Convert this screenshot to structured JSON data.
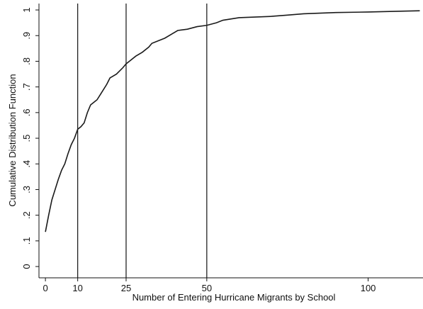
{
  "chart_data": {
    "type": "line",
    "xlabel": "Number of Entering Hurricane Migrants by School",
    "ylabel": "Cumulative Distribution Function",
    "x": [
      0,
      1,
      2,
      3,
      4,
      5,
      6,
      7,
      8,
      9,
      10,
      11,
      12,
      13,
      14,
      15,
      16,
      17,
      18,
      19,
      20,
      22,
      24,
      25,
      26,
      28,
      30,
      32,
      33,
      35,
      37,
      39,
      41,
      44,
      47,
      50,
      53,
      55,
      60,
      70,
      75,
      80,
      90,
      100,
      110,
      116
    ],
    "values": [
      0.135,
      0.2,
      0.26,
      0.3,
      0.34,
      0.375,
      0.4,
      0.44,
      0.475,
      0.5,
      0.535,
      0.545,
      0.56,
      0.6,
      0.63,
      0.64,
      0.65,
      0.67,
      0.69,
      0.71,
      0.735,
      0.75,
      0.775,
      0.79,
      0.8,
      0.82,
      0.835,
      0.855,
      0.87,
      0.88,
      0.89,
      0.905,
      0.92,
      0.925,
      0.935,
      0.94,
      0.95,
      0.96,
      0.97,
      0.975,
      0.98,
      0.985,
      0.99,
      0.992,
      0.995,
      0.997
    ],
    "color": "#1a1a1a",
    "reference_lines": [
      10,
      25,
      50
    ],
    "xlim": [
      -2,
      117
    ],
    "xticks": [
      0,
      10,
      25,
      50,
      100
    ],
    "ylim": [
      -0.044,
      1.025
    ],
    "yticks": [
      0,
      {
        "value": 0.1,
        "label": ".1"
      },
      {
        "value": 0.2,
        "label": ".2"
      },
      {
        "value": 0.3,
        "label": ".3"
      },
      {
        "value": 0.4,
        "label": ".4"
      },
      {
        "value": 0.5,
        "label": ".5"
      },
      {
        "value": 0.6,
        "label": ".6"
      },
      {
        "value": 0.7,
        "label": ".7"
      },
      {
        "value": 0.8,
        "label": ".8"
      },
      {
        "value": 0.9,
        "label": ".9"
      },
      1
    ]
  }
}
